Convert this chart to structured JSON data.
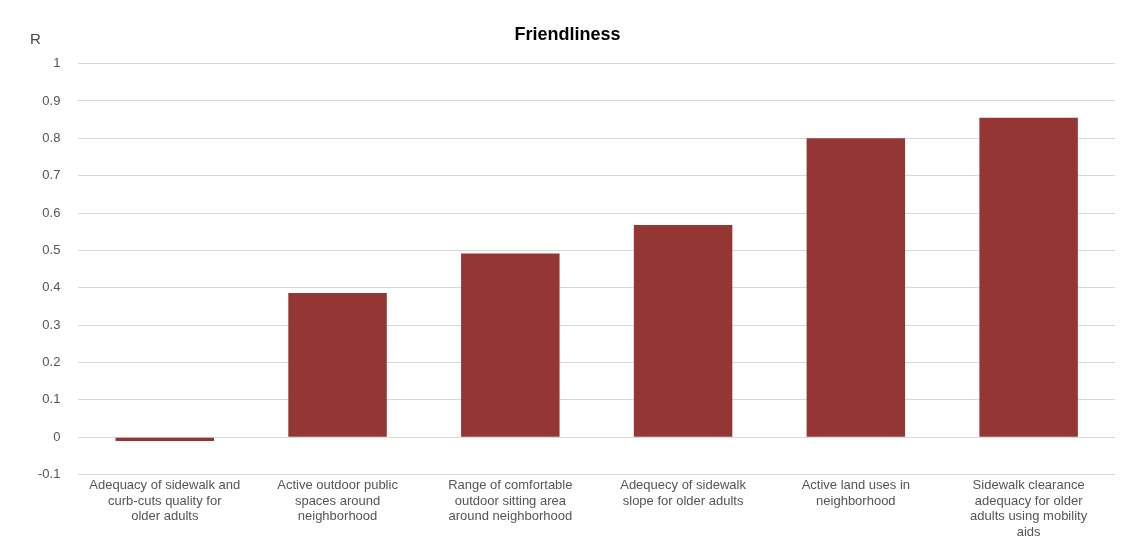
{
  "chart_data": {
    "type": "bar",
    "title": "Friendliness",
    "ylabel": "R",
    "categories": [
      "Adequacy of sidewalk and curb-cuts quality for older adults",
      "Active outdoor public spaces around neighborhood",
      "Range of comfortable outdoor sitting area around neighborhood",
      "Adequecy of sidewalk slope for older adults",
      "Active land uses in neighborhood",
      "Sidewalk clearance adequacy for older adults using mobility aids"
    ],
    "values": [
      -0.01,
      0.386,
      0.492,
      0.568,
      0.8,
      0.855
    ],
    "color": "#943634",
    "ylim": [
      -0.1,
      1
    ],
    "yticks": [
      -0.1,
      0,
      0.1,
      0.2,
      0.3,
      0.4,
      0.5,
      0.6,
      0.7,
      0.8,
      0.9,
      1
    ],
    "grid": "y",
    "legend": false
  }
}
